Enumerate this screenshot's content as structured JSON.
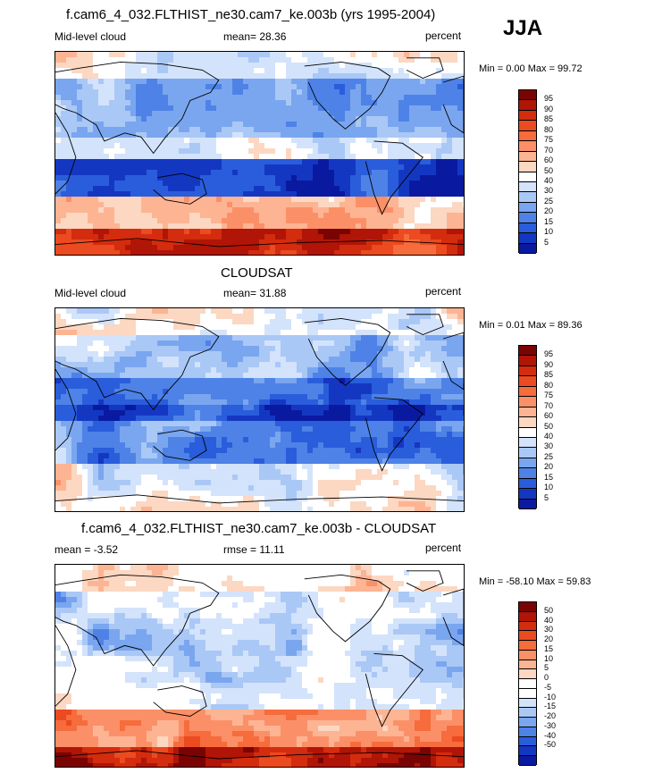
{
  "season": "JJA",
  "panels": [
    {
      "title": "f.cam6_4_032.FLTHIST_ne30.cam7_ke.003b (yrs 1995-2004)",
      "left_label": "Mid-level cloud",
      "mean_text": "mean=  28.36",
      "unit": "percent",
      "minmax": "Min =   0.00 Max =  99.72",
      "colorbar_labels": [
        "95",
        "90",
        "85",
        "80",
        "75",
        "70",
        "60",
        "50",
        "40",
        "30",
        "25",
        "20",
        "15",
        "10",
        "5"
      ],
      "type": "field"
    },
    {
      "title": "CLOUDSAT",
      "left_label": "Mid-level cloud",
      "mean_text": "mean=  31.88",
      "unit": "percent",
      "minmax": "Min =   0.01 Max =  89.36",
      "colorbar_labels": [
        "95",
        "90",
        "85",
        "80",
        "75",
        "70",
        "60",
        "50",
        "40",
        "30",
        "25",
        "20",
        "15",
        "10",
        "5"
      ],
      "type": "field"
    },
    {
      "title": "f.cam6_4_032.FLTHIST_ne30.cam7_ke.003b - CLOUDSAT",
      "left_label": "mean =  -3.52",
      "mean_text": "rmse =  11.11",
      "unit": "percent",
      "minmax": "Min = -58.10 Max =  59.83",
      "colorbar_labels": [
        "50",
        "40",
        "30",
        "20",
        "15",
        "10",
        "5",
        "0",
        "-5",
        "-10",
        "-15",
        "-20",
        "-30",
        "-40",
        "-50"
      ],
      "type": "diff"
    }
  ],
  "colors": {
    "field": [
      "#7a0403",
      "#b01507",
      "#d42c0e",
      "#ec4a20",
      "#f66c3c",
      "#fb9068",
      "#fdb493",
      "#fcd7c2",
      "#ffffff",
      "#d3e3fb",
      "#aac8f6",
      "#7aa6ef",
      "#4e82e6",
      "#2a5ddb",
      "#1437c2",
      "#0a1aa0"
    ],
    "diff": [
      "#7a0403",
      "#b01507",
      "#d42c0e",
      "#ec4a20",
      "#f66c3c",
      "#fb9068",
      "#fdb493",
      "#fcd7c2",
      "#ffffff",
      "#ffffff",
      "#d3e3fb",
      "#aac8f6",
      "#7aa6ef",
      "#4e82e6",
      "#2a5ddb",
      "#1437c2",
      "#0a1aa0"
    ]
  },
  "chart_data": [
    {
      "type": "heatmap",
      "title": "f.cam6_4_032.FLTHIST_ne30.cam7_ke.003b (yrs 1995-2004)",
      "variable": "Mid-level cloud",
      "units": "percent",
      "mean": 28.36,
      "min": 0.0,
      "max": 99.72,
      "contour_levels": [
        5,
        10,
        15,
        20,
        25,
        30,
        40,
        50,
        60,
        70,
        75,
        80,
        85,
        90,
        95
      ]
    },
    {
      "type": "heatmap",
      "title": "CLOUDSAT",
      "variable": "Mid-level cloud",
      "units": "percent",
      "mean": 31.88,
      "min": 0.01,
      "max": 89.36,
      "contour_levels": [
        5,
        10,
        15,
        20,
        25,
        30,
        40,
        50,
        60,
        70,
        75,
        80,
        85,
        90,
        95
      ]
    },
    {
      "type": "heatmap",
      "title": "f.cam6_4_032.FLTHIST_ne30.cam7_ke.003b - CLOUDSAT",
      "units": "percent",
      "mean": -3.52,
      "rmse": 11.11,
      "min": -58.1,
      "max": 59.83,
      "contour_levels": [
        -50,
        -40,
        -30,
        -20,
        -15,
        -10,
        -5,
        0,
        5,
        10,
        15,
        20,
        30,
        40,
        50
      ]
    }
  ]
}
